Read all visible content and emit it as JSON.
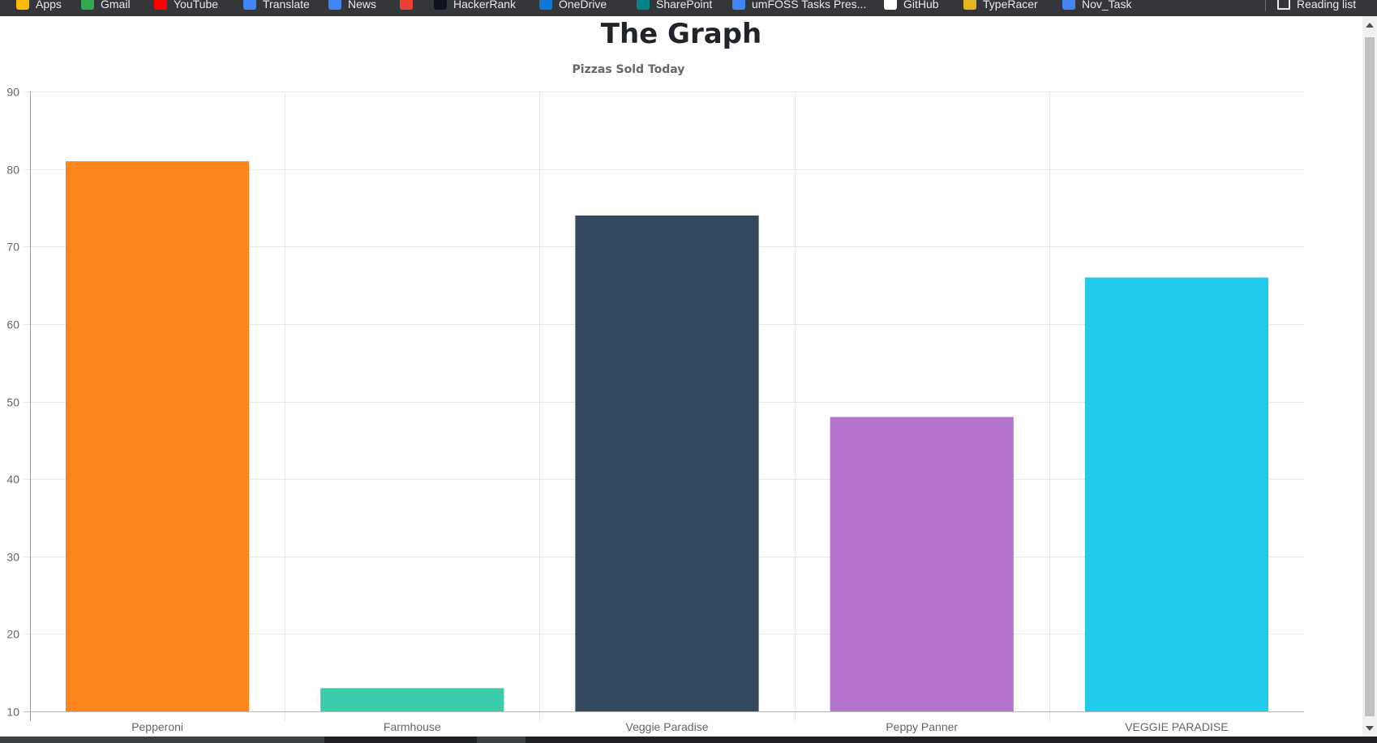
{
  "bookmarks": [
    {
      "label": "Apps",
      "icon": "apps-grid-icon",
      "color": "#fbbc04"
    },
    {
      "label": "Gmail",
      "icon": "gmail-icon",
      "color": "#34a853"
    },
    {
      "label": "YouTube",
      "icon": "youtube-icon",
      "color": "#ff0000"
    },
    {
      "label": "Translate",
      "icon": "translate-icon",
      "color": "#4285f4"
    },
    {
      "label": "News",
      "icon": "news-icon",
      "color": "#4285f4"
    },
    {
      "label": "",
      "icon": "chrome-icon",
      "color": "#ea4335"
    },
    {
      "label": "HackerRank",
      "icon": "hackerrank-icon",
      "color": "#0e141e"
    },
    {
      "label": "OneDrive",
      "icon": "onedrive-icon",
      "color": "#0f78d4"
    },
    {
      "label": "SharePoint",
      "icon": "sharepoint-icon",
      "color": "#038387"
    },
    {
      "label": "umFOSS Tasks Pres...",
      "icon": "docs-icon",
      "color": "#4285f4"
    },
    {
      "label": "GitHub",
      "icon": "github-icon",
      "color": "#ffffff"
    },
    {
      "label": "TypeRacer",
      "icon": "typeracer-icon",
      "color": "#e6b422"
    },
    {
      "label": "Nov_Task",
      "icon": "docs-icon",
      "color": "#4285f4"
    }
  ],
  "reading_list": {
    "label": "Reading list",
    "icon": "reading-list-icon"
  },
  "page": {
    "title": "The Graph"
  },
  "chart_data": {
    "type": "bar",
    "title": "Pizzas Sold Today",
    "xlabel": "",
    "ylabel": "",
    "categories": [
      "Pepperoni",
      "Farmhouse",
      "Veggie Paradise",
      "Peppy Panner",
      "VEGGIE PARADISE"
    ],
    "values": [
      81,
      13,
      74,
      48,
      66
    ],
    "colors": [
      "#fd861c",
      "#3acbab",
      "#34495e",
      "#b473cf",
      "#22cbec"
    ],
    "ylim": [
      10,
      90
    ],
    "yticks": [
      10,
      20,
      30,
      40,
      50,
      60,
      70,
      80,
      90
    ],
    "grid": true,
    "legend": "none"
  }
}
